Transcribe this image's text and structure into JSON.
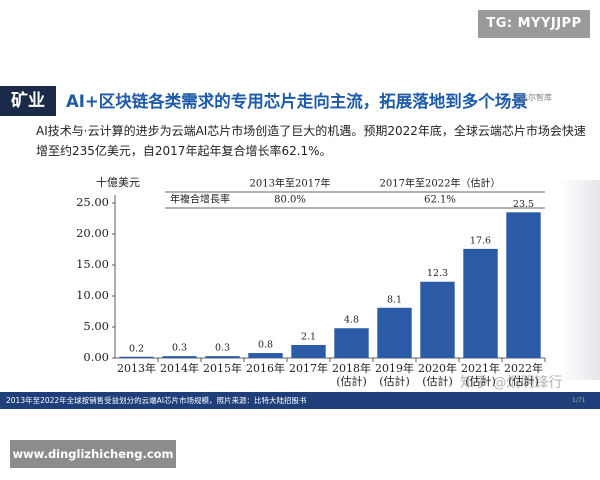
{
  "tag": "TG: MYYJJPP",
  "section": "矿业",
  "title": "AI+区块链各类需求的专用芯片走向主流，拓展落地到多个场景",
  "logo": "达尔智库",
  "paragraph": "AI技术与·云计算的进步为云端AI芯片市场创造了巨大的机遇。预期2022年底，全球云端芯片市场会快速增至约235亿美元，自2017年起年复合增长率62.1%。",
  "footer": "2013年至2022年全球按销售受益划分的云端AI芯片市场规模，照片来源：比特大陆招股书",
  "page_number": "1/71",
  "watermark": "知乎 @炯明锋行",
  "website": "www.dinglizhicheng.com",
  "chart_data": {
    "type": "bar",
    "y_axis_label": "十億美元",
    "categories": [
      "2013年",
      "2014年",
      "2015年",
      "2016年",
      "2017年",
      "2018年\n(估計)",
      "2019年\n(估計)",
      "2020年\n(估計)",
      "2021年\n(估計)",
      "2022年\n(估計)"
    ],
    "values": [
      0.2,
      0.3,
      0.3,
      0.8,
      2.1,
      4.8,
      8.1,
      12.3,
      17.6,
      23.5
    ],
    "color": "#2b5ba6",
    "ylim": [
      0,
      25
    ],
    "yticks": [
      {
        "value": 0,
        "label": "0.00"
      },
      {
        "value": 5,
        "label": "5.00"
      },
      {
        "value": 10,
        "label": "10.00"
      },
      {
        "value": 15,
        "label": "15.00"
      },
      {
        "value": 20,
        "label": "20.00"
      },
      {
        "value": 25,
        "label": "25.00"
      }
    ],
    "table": {
      "headers": [
        "2013年至2017年",
        "2017年至2022年（估計）"
      ],
      "row_label": "年複合增長率",
      "row": [
        "80.0%",
        "62.1%"
      ]
    }
  }
}
